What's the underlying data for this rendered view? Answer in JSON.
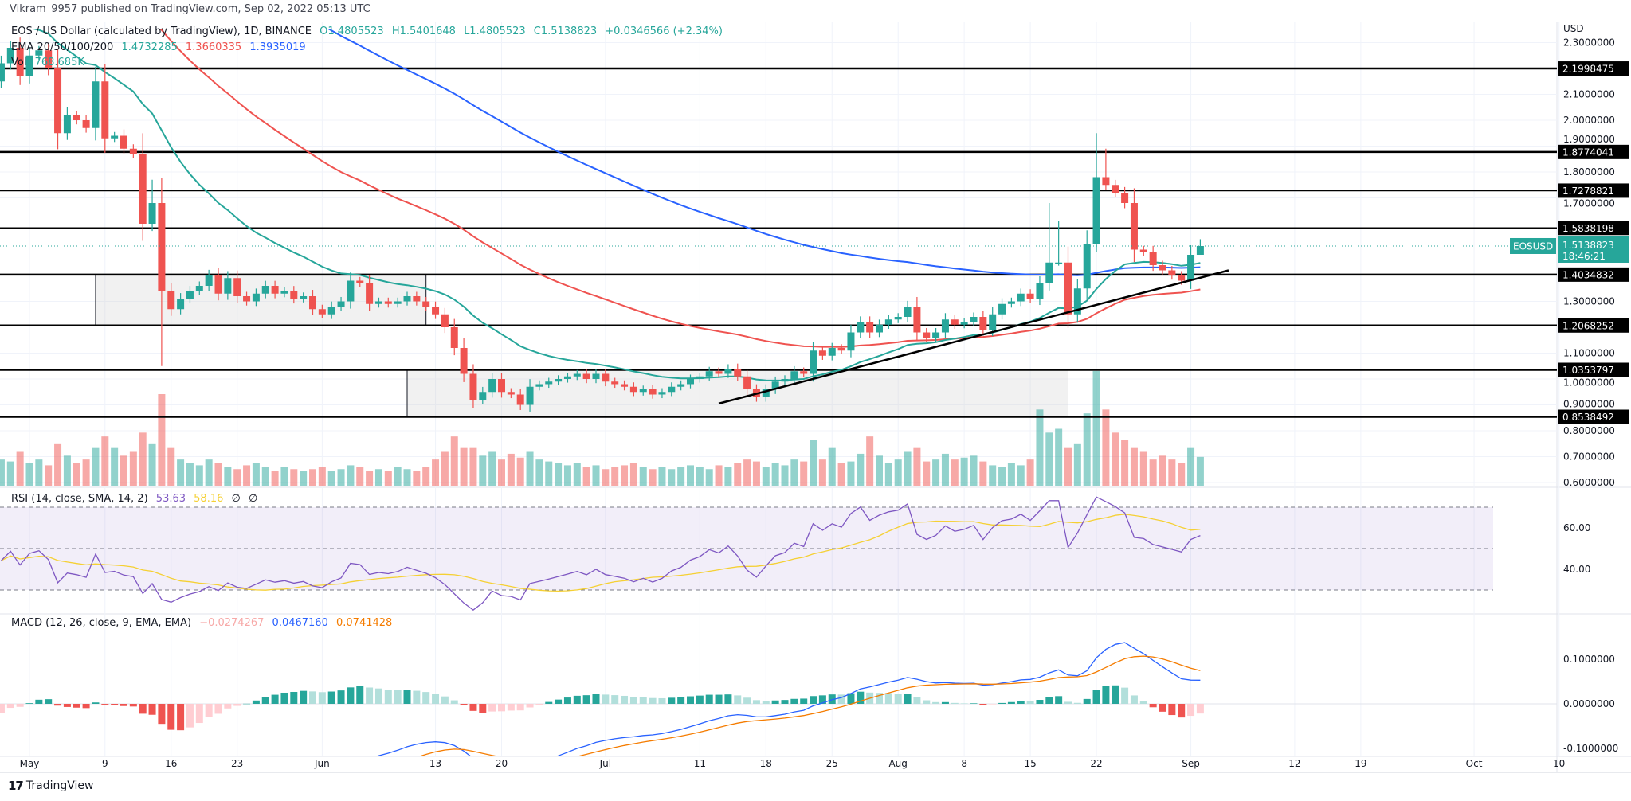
{
  "header": {
    "published": "Vikram_9957 published on TradingView.com, Sep 02, 2022 05:13 UTC"
  },
  "legend": {
    "symbol": "EOS / US Dollar (calculated by TradingView), 1D, BINANCE",
    "open": "O1.4805523",
    "high": "H1.5401648",
    "low": "L1.4805523",
    "close": "C1.5138823",
    "change": "+0.0346566 (+2.34%)",
    "ema_label": "EMA 20/50/100/200",
    "ema20": "1.4732285",
    "ema50": "1.3660335",
    "ema100": "1.3935019",
    "vol_label": "Vol",
    "vol_value": "768.685K",
    "rsi_label": "RSI (14, close, SMA, 14, 2)",
    "rsi_value": "53.63",
    "rsi_sma": "58.16",
    "rsi_extra1": "∅",
    "rsi_extra2": "∅",
    "macd_label": "MACD (12, 26, close, 9, EMA, EMA)",
    "macd_hist": "−0.0274267",
    "macd_value": "0.0467160",
    "macd_signal": "0.0741428"
  },
  "price_axis": {
    "currency": "USD",
    "ticks": [
      "2.3000000",
      "2.1000000",
      "2.0000000",
      "1.9000000",
      "1.8000000",
      "1.7000000",
      "1.3000000",
      "1.1000000",
      "1.0000000",
      "0.9000000",
      "0.8000000",
      "0.7000000",
      "0.6000000"
    ],
    "tick_values": [
      2.3,
      2.1,
      2.0,
      1.9,
      1.8,
      1.7,
      1.3,
      1.1,
      1.0,
      0.9,
      0.8,
      0.7,
      0.6
    ],
    "levels": [
      {
        "value": 2.1998475,
        "label": "2.1998475",
        "thick": true
      },
      {
        "value": 1.8774041,
        "label": "1.8774041",
        "thick": true
      },
      {
        "value": 1.7278821,
        "label": "1.7278821",
        "thick": false
      },
      {
        "value": 1.5838198,
        "label": "1.5838198",
        "thick": false
      },
      {
        "value": 1.4034832,
        "label": "1.4034832",
        "thick": true
      },
      {
        "value": 1.2068252,
        "label": "1.2068252",
        "thick": true
      },
      {
        "value": 1.0353797,
        "label": "1.0353797",
        "thick": true
      },
      {
        "value": 0.8538492,
        "label": "0.8538492",
        "thick": true
      }
    ],
    "current": {
      "symbol": "EOSUSD",
      "price": "1.5138823",
      "price_value": 1.5138823,
      "countdown": "18:46:21"
    }
  },
  "rsi_axis": {
    "ticks": [
      "60.00",
      "40.00"
    ],
    "tick_values": [
      60,
      40
    ]
  },
  "macd_axis": {
    "ticks": [
      "0.1000000",
      "0.0000000",
      "-0.1000000"
    ],
    "tick_values": [
      0.1,
      0.0,
      -0.1
    ]
  },
  "colors": {
    "up": "#26a69a",
    "down": "#ef5350",
    "ema20": "#26a69a",
    "ema50": "#ef5350",
    "ema100": "#2962ff",
    "rsi": "#7e57c2",
    "rsi_sma": "#f5d033",
    "macd": "#2962ff",
    "signal": "#f57c00"
  },
  "footer": {
    "brand": "TradingView"
  },
  "chart_data": {
    "type": "candlestick",
    "title": "EOS / US Dollar, 1D, BINANCE",
    "start_date": "2022-04-28",
    "first_open": 2.15,
    "close": [
      2.22,
      2.28,
      2.17,
      2.25,
      2.27,
      2.2,
      1.95,
      2.02,
      2.0,
      1.97,
      2.15,
      1.93,
      1.94,
      1.89,
      1.87,
      1.6,
      1.68,
      1.34,
      1.27,
      1.31,
      1.34,
      1.36,
      1.4,
      1.33,
      1.39,
      1.32,
      1.3,
      1.33,
      1.36,
      1.33,
      1.34,
      1.31,
      1.32,
      1.27,
      1.25,
      1.28,
      1.3,
      1.38,
      1.37,
      1.29,
      1.3,
      1.29,
      1.3,
      1.32,
      1.3,
      1.28,
      1.25,
      1.2,
      1.12,
      1.02,
      0.92,
      0.95,
      1.0,
      0.95,
      0.94,
      0.9,
      0.97,
      0.98,
      0.99,
      1.0,
      1.01,
      1.02,
      1.0,
      1.02,
      0.99,
      0.98,
      0.97,
      0.95,
      0.96,
      0.94,
      0.95,
      0.97,
      0.98,
      1.0,
      1.01,
      1.03,
      1.02,
      1.04,
      1.01,
      0.96,
      0.93,
      0.96,
      0.99,
      1.0,
      1.03,
      1.02,
      1.11,
      1.09,
      1.12,
      1.11,
      1.18,
      1.22,
      1.18,
      1.21,
      1.23,
      1.24,
      1.28,
      1.18,
      1.16,
      1.18,
      1.23,
      1.21,
      1.22,
      1.24,
      1.19,
      1.25,
      1.29,
      1.3,
      1.33,
      1.31,
      1.37,
      1.45,
      1.45,
      1.25,
      1.35,
      1.52,
      1.78,
      1.75,
      1.72,
      1.68,
      1.5,
      1.49,
      1.44,
      1.42,
      1.4,
      1.38,
      1.48,
      1.5138823
    ],
    "wick_overrides": [
      {
        "i": 17,
        "low": 1.05
      },
      {
        "i": 16,
        "high": 1.77
      },
      {
        "i": 111,
        "high": 1.68
      },
      {
        "i": 112,
        "high": 1.61
      },
      {
        "i": 116,
        "high": 1.95
      },
      {
        "i": 117,
        "high": 1.89
      },
      {
        "i": 116,
        "low": 1.49
      },
      {
        "i": 127,
        "high": 1.5401648,
        "low": 1.4805523
      }
    ],
    "volume_k": [
      700,
      650,
      900,
      600,
      700,
      550,
      1100,
      800,
      600,
      700,
      1000,
      1300,
      1000,
      800,
      900,
      1400,
      1100,
      2400,
      1000,
      700,
      600,
      550,
      700,
      600,
      500,
      450,
      550,
      600,
      500,
      400,
      500,
      450,
      400,
      450,
      500,
      400,
      450,
      550,
      500,
      400,
      450,
      400,
      500,
      450,
      400,
      500,
      700,
      900,
      1300,
      1000,
      1000,
      800,
      900,
      700,
      850,
      750,
      900,
      700,
      650,
      600,
      550,
      600,
      500,
      550,
      450,
      500,
      550,
      600,
      500,
      450,
      500,
      450,
      500,
      550,
      500,
      450,
      550,
      500,
      600,
      700,
      650,
      500,
      600,
      550,
      700,
      650,
      1200,
      700,
      1000,
      600,
      650,
      850,
      1300,
      800,
      600,
      700,
      900,
      1000,
      650,
      700,
      850,
      700,
      750,
      800,
      650,
      550,
      500,
      600,
      550,
      700,
      2000,
      1400,
      1500,
      1000,
      1100,
      1900,
      3000,
      2000,
      1400,
      1200,
      1000,
      900,
      700,
      800,
      700,
      600,
      1000,
      768.685
    ],
    "ema_seeds": {
      "ema20": 2.42,
      "ema50": 2.78,
      "ema100": 3.15
    },
    "macd_seeds": {
      "ema12": 2.33,
      "ema26": 2.5,
      "signal": -0.14
    },
    "rsi_seeds": {
      "avg_gain": 0.02,
      "avg_loss": 0.032
    },
    "trendline": {
      "from": {
        "date": "2022-07-13",
        "price": 0.905
      },
      "to": {
        "date": "2022-09-05",
        "price": 1.42
      }
    },
    "zones": [
      {
        "from": "2022-05-08",
        "to": "2022-06-12",
        "low": 1.2068252,
        "high": 1.4034832
      },
      {
        "from": "2022-06-10",
        "to": "2022-08-19",
        "low": 0.8538492,
        "high": 1.0353797
      }
    ],
    "x_ticks": [
      {
        "label": "May",
        "date": "2022-05-01"
      },
      {
        "label": "9",
        "date": "2022-05-09"
      },
      {
        "label": "16",
        "date": "2022-05-16"
      },
      {
        "label": "23",
        "date": "2022-05-23"
      },
      {
        "label": "Jun",
        "date": "2022-06-01"
      },
      {
        "label": "13",
        "date": "2022-06-13"
      },
      {
        "label": "20",
        "date": "2022-06-20"
      },
      {
        "label": "Jul",
        "date": "2022-07-01"
      },
      {
        "label": "11",
        "date": "2022-07-11"
      },
      {
        "label": "18",
        "date": "2022-07-18"
      },
      {
        "label": "25",
        "date": "2022-07-25"
      },
      {
        "label": "Aug",
        "date": "2022-08-01"
      },
      {
        "label": "8",
        "date": "2022-08-08"
      },
      {
        "label": "15",
        "date": "2022-08-15"
      },
      {
        "label": "22",
        "date": "2022-08-22"
      },
      {
        "label": "Sep",
        "date": "2022-09-01"
      },
      {
        "label": "12",
        "date": "2022-09-12"
      },
      {
        "label": "19",
        "date": "2022-09-19"
      },
      {
        "label": "Oct",
        "date": "2022-10-01"
      },
      {
        "label": "10",
        "date": "2022-10-10"
      }
    ],
    "ylim": [
      0.6,
      2.3
    ],
    "rsi_bands": [
      30,
      50,
      70
    ],
    "grid": true
  }
}
